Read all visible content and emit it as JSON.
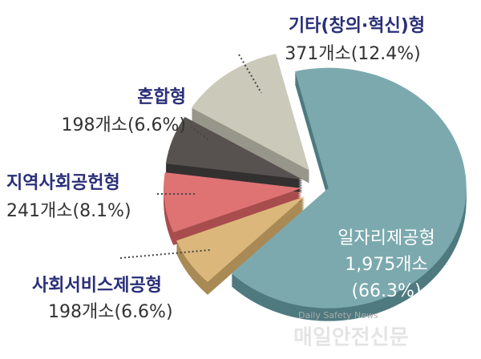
{
  "chart_data": {
    "type": "pie",
    "categories": [
      "일자리제공형",
      "사회서비스제공형",
      "지역사회공헌형",
      "혼합형",
      "기타(창의·혁신)형"
    ],
    "values": [
      66.3,
      6.6,
      8.1,
      6.6,
      12.4
    ],
    "value_labels": [
      "(66.3%)",
      "(6.6%)",
      "(8.1%)",
      "(6.6%)",
      "(12.4%)"
    ],
    "counts": [
      1975,
      198,
      241,
      198,
      371
    ],
    "count_labels": [
      "1,975개소",
      "198개소",
      "241개소",
      "198개소",
      "371개소"
    ],
    "colors": [
      "#7ba9ae",
      "#dcb77b",
      "#df7373",
      "#57524f",
      "#cbc9b9"
    ],
    "side_colors": [
      "#4f7a7f",
      "#a98a55",
      "#a84d4d",
      "#333030",
      "#97968a"
    ],
    "watermark": [
      "Daily Safety News",
      "매일안전신문"
    ]
  }
}
